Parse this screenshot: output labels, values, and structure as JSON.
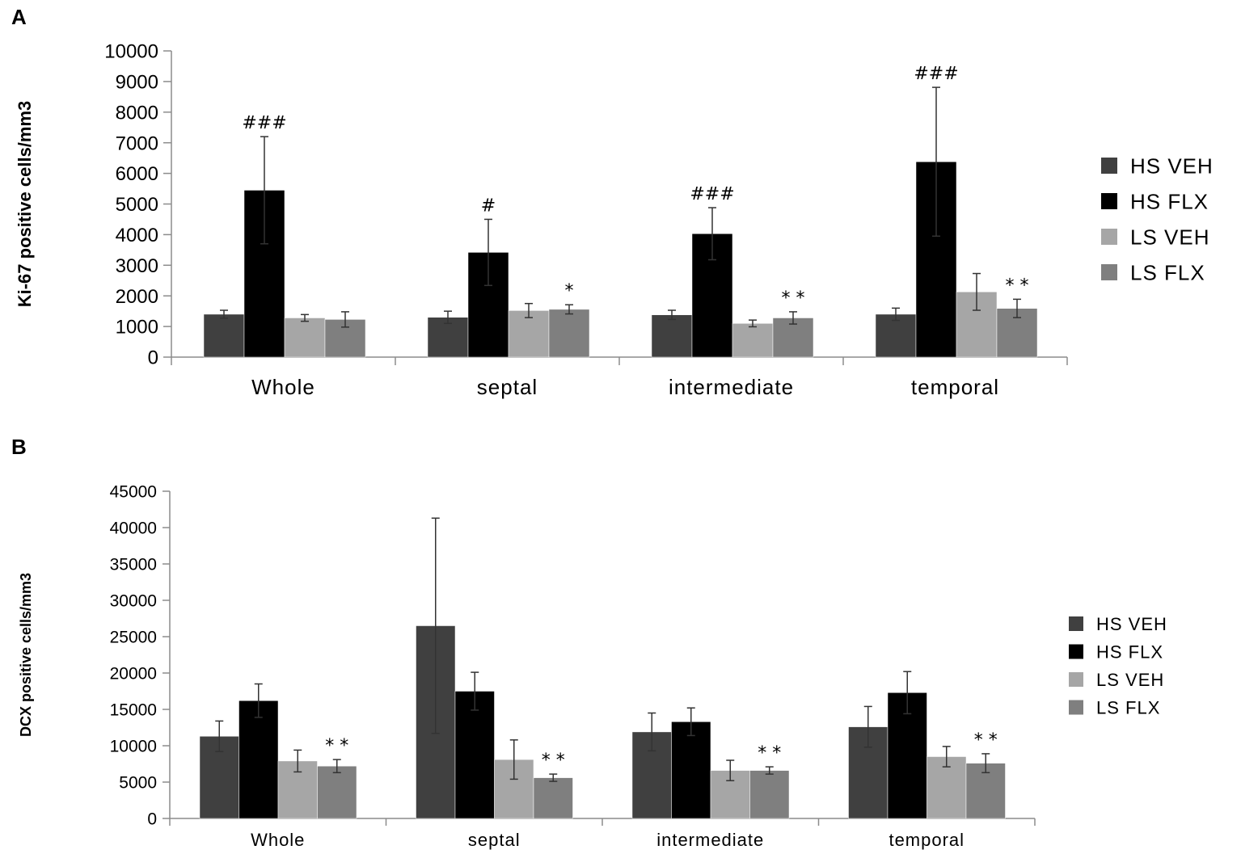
{
  "colors": {
    "HS VEH": "#404040",
    "HS FLX": "#000000",
    "LS VEH": "#a6a6a6",
    "LS FLX": "#7f7f7f",
    "axis": "#8c8c8c",
    "errorbar": "#333333"
  },
  "chart_data": [
    {
      "panel": "A",
      "type": "bar",
      "title": "",
      "xlabel": "",
      "ylabel": "Ki-67 positive cells/mm3",
      "ylim": [
        0,
        10000
      ],
      "ytick_step": 1000,
      "yticks": [
        "0",
        "1000",
        "2000",
        "3000",
        "4000",
        "5000",
        "6000",
        "7000",
        "8000",
        "9000",
        "10000"
      ],
      "categories": [
        "Whole",
        "septal",
        "intermediate",
        "temporal"
      ],
      "legend": [
        "HS VEH",
        "HS FLX",
        "LS VEH",
        "LS FLX"
      ],
      "legend_position": "right",
      "series": [
        {
          "name": "HS VEH",
          "values": [
            1400,
            1300,
            1380,
            1400
          ],
          "errors": [
            130,
            200,
            150,
            200
          ]
        },
        {
          "name": "HS FLX",
          "values": [
            5450,
            3420,
            4030,
            6380
          ],
          "errors": [
            1750,
            1080,
            850,
            2430
          ]
        },
        {
          "name": "LS VEH",
          "values": [
            1280,
            1520,
            1100,
            2130
          ],
          "errors": [
            110,
            230,
            110,
            600
          ]
        },
        {
          "name": "LS FLX",
          "values": [
            1230,
            1560,
            1280,
            1590
          ],
          "errors": [
            250,
            150,
            200,
            300
          ]
        }
      ],
      "annotations": [
        {
          "category": "Whole",
          "series": "HS FLX",
          "text": "###"
        },
        {
          "category": "septal",
          "series": "HS FLX",
          "text": "#"
        },
        {
          "category": "septal",
          "series": "LS FLX",
          "text": "*"
        },
        {
          "category": "intermediate",
          "series": "HS FLX",
          "text": "###"
        },
        {
          "category": "intermediate",
          "series": "LS FLX",
          "text": "**"
        },
        {
          "category": "temporal",
          "series": "HS FLX",
          "text": "###"
        },
        {
          "category": "temporal",
          "series": "LS FLX",
          "text": "**"
        }
      ]
    },
    {
      "panel": "B",
      "type": "bar",
      "title": "",
      "xlabel": "",
      "ylabel": "DCX positive cells/mm3",
      "ylim": [
        0,
        45000
      ],
      "ytick_step": 5000,
      "yticks": [
        "0",
        "5000",
        "10000",
        "15000",
        "20000",
        "25000",
        "30000",
        "35000",
        "40000",
        "45000"
      ],
      "categories": [
        "Whole",
        "septal",
        "intermediate",
        "temporal"
      ],
      "legend": [
        "HS VEH",
        "HS FLX",
        "LS VEH",
        "LS FLX"
      ],
      "legend_position": "right",
      "series": [
        {
          "name": "HS VEH",
          "values": [
            11300,
            26500,
            11900,
            12600
          ],
          "errors": [
            2100,
            14800,
            2600,
            2800
          ]
        },
        {
          "name": "HS FLX",
          "values": [
            16200,
            17500,
            13300,
            17300
          ],
          "errors": [
            2300,
            2600,
            1900,
            2900
          ]
        },
        {
          "name": "LS VEH",
          "values": [
            7900,
            8100,
            6600,
            8500
          ],
          "errors": [
            1500,
            2700,
            1400,
            1400
          ]
        },
        {
          "name": "LS FLX",
          "values": [
            7200,
            5600,
            6600,
            7600
          ],
          "errors": [
            900,
            500,
            500,
            1300
          ]
        }
      ],
      "annotations": [
        {
          "category": "Whole",
          "series": "LS FLX",
          "text": "**"
        },
        {
          "category": "septal",
          "series": "LS FLX",
          "text": "**"
        },
        {
          "category": "intermediate",
          "series": "LS FLX",
          "text": "**"
        },
        {
          "category": "temporal",
          "series": "LS FLX",
          "text": "**"
        }
      ]
    }
  ]
}
